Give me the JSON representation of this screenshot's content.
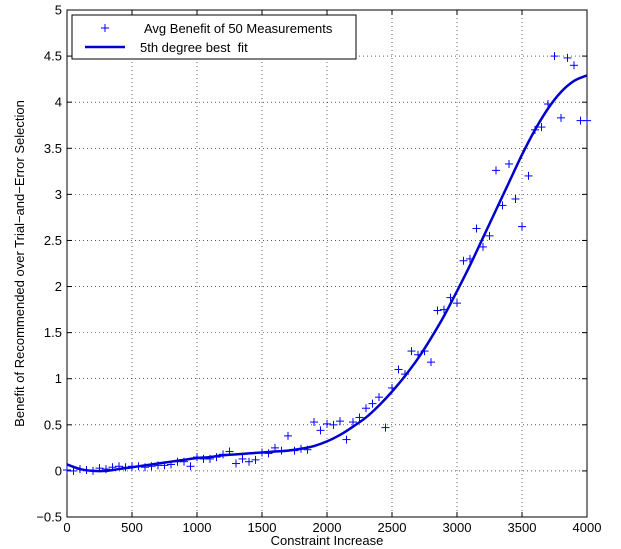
{
  "chart_data": {
    "type": "scatter",
    "title": "",
    "xlabel": "Constraint Increase",
    "ylabel": "Benefit of Recommended over Trial−and−Error Selection",
    "xlim": [
      0,
      4000
    ],
    "ylim": [
      -0.5,
      5
    ],
    "xticks": [
      0,
      500,
      1000,
      1500,
      2000,
      2500,
      3000,
      3500,
      4000
    ],
    "yticks": [
      -0.5,
      0,
      0.5,
      1,
      1.5,
      2,
      2.5,
      3,
      3.5,
      4,
      4.5,
      5
    ],
    "xtick_labels": [
      "0",
      "500",
      "1000",
      "1500",
      "2000",
      "2500",
      "3000",
      "3500",
      "4000"
    ],
    "ytick_labels": [
      "−0.5",
      "0",
      "0.5",
      "1",
      "1.5",
      "2",
      "2.5",
      "3",
      "3.5",
      "4",
      "4.5",
      "5"
    ],
    "grid": true,
    "legend_position": "top-left",
    "series": [
      {
        "name": "Avg Benefit of 50 Measurements",
        "kind": "scatter",
        "marker": "+",
        "color": "#0000ff",
        "x": [
          0,
          50,
          100,
          150,
          200,
          250,
          300,
          350,
          400,
          450,
          500,
          550,
          600,
          650,
          700,
          750,
          800,
          850,
          900,
          950,
          1000,
          1050,
          1100,
          1150,
          1200,
          1250,
          1300,
          1350,
          1400,
          1450,
          1500,
          1550,
          1600,
          1650,
          1700,
          1750,
          1800,
          1850,
          1900,
          1950,
          2000,
          2050,
          2100,
          2150,
          2200,
          2250,
          2300,
          2350,
          2400,
          2450,
          2500,
          2550,
          2600,
          2650,
          2700,
          2750,
          2800,
          2850,
          2900,
          2950,
          3000,
          3050,
          3100,
          3150,
          3200,
          3250,
          3300,
          3350,
          3400,
          3450,
          3500,
          3550,
          3600,
          3650,
          3700,
          3750,
          3800,
          3850,
          3900,
          3950,
          4000
        ],
        "y": [
          0.01,
          0.0,
          0.02,
          0.01,
          0.0,
          0.03,
          0.02,
          0.04,
          0.05,
          0.04,
          0.05,
          0.05,
          0.04,
          0.05,
          0.06,
          0.06,
          0.07,
          0.1,
          0.1,
          0.05,
          0.15,
          0.13,
          0.13,
          0.15,
          0.18,
          0.21,
          0.08,
          0.13,
          0.1,
          0.12,
          0.2,
          0.19,
          0.25,
          0.22,
          0.38,
          0.22,
          0.24,
          0.23,
          0.53,
          0.44,
          0.51,
          0.5,
          0.54,
          0.34,
          0.53,
          0.58,
          0.68,
          0.73,
          0.8,
          0.47,
          0.9,
          1.1,
          1.05,
          1.3,
          1.26,
          1.3,
          1.18,
          1.74,
          1.75,
          1.88,
          1.82,
          2.28,
          2.3,
          2.63,
          2.43,
          2.55,
          3.26,
          2.88,
          3.33,
          2.95,
          2.65,
          3.2,
          3.7,
          3.73,
          3.98,
          4.5,
          3.83,
          4.48,
          4.4,
          3.8,
          3.8
        ]
      },
      {
        "name": "5th degree best  fit",
        "kind": "line",
        "color": "#0000cc",
        "x": [
          0,
          100,
          200,
          300,
          400,
          500,
          600,
          700,
          800,
          900,
          1000,
          1100,
          1200,
          1300,
          1400,
          1500,
          1600,
          1700,
          1800,
          1900,
          2000,
          2100,
          2200,
          2300,
          2400,
          2500,
          2600,
          2700,
          2800,
          2900,
          3000,
          3100,
          3200,
          3300,
          3400,
          3500,
          3600,
          3700,
          3800,
          3900,
          4000
        ],
        "y": [
          0.07,
          0.02,
          0.0,
          0.0,
          0.02,
          0.04,
          0.06,
          0.08,
          0.1,
          0.12,
          0.14,
          0.15,
          0.17,
          0.18,
          0.19,
          0.2,
          0.21,
          0.22,
          0.24,
          0.27,
          0.32,
          0.39,
          0.48,
          0.58,
          0.71,
          0.86,
          1.03,
          1.22,
          1.44,
          1.68,
          1.95,
          2.23,
          2.53,
          2.83,
          3.13,
          3.43,
          3.7,
          3.93,
          4.11,
          4.23,
          4.29
        ]
      }
    ]
  }
}
